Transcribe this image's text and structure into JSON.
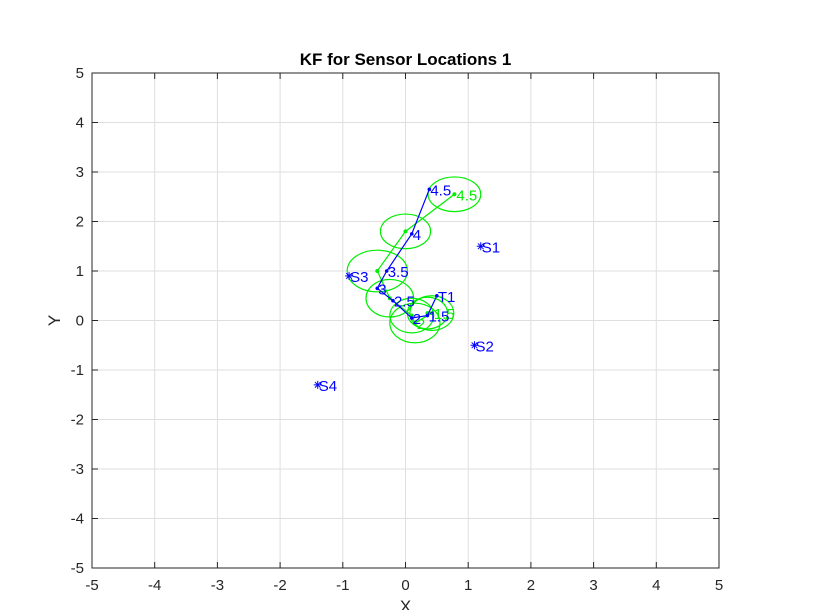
{
  "chart_data": {
    "type": "scatter",
    "title": "KF for Sensor Locations 1",
    "xlabel": "X",
    "ylabel": "Y",
    "xlim": [
      -5,
      5
    ],
    "ylim": [
      -5,
      5
    ],
    "xticks": [
      -5,
      -4,
      -3,
      -2,
      -1,
      0,
      1,
      2,
      3,
      4,
      5
    ],
    "yticks": [
      -5,
      -4,
      -3,
      -2,
      -1,
      0,
      1,
      2,
      3,
      4,
      5
    ],
    "grid": true,
    "colors": {
      "true_path": "#0000ff",
      "estimate": "#00ee00",
      "sensor": "#0000ff"
    },
    "sensors": [
      {
        "label": "S1",
        "x": 1.2,
        "y": 1.5
      },
      {
        "label": "S2",
        "x": 1.1,
        "y": -0.5
      },
      {
        "label": "S3",
        "x": -0.9,
        "y": 0.9
      },
      {
        "label": "S4",
        "x": -1.4,
        "y": -1.3
      }
    ],
    "true_path": [
      {
        "label": "T1",
        "x": 0.5,
        "y": 0.5
      },
      {
        "label": "1.5",
        "x": 0.35,
        "y": 0.1
      },
      {
        "label": "2",
        "x": 0.1,
        "y": 0.05
      },
      {
        "label": "2.5",
        "x": -0.2,
        "y": 0.4
      },
      {
        "label": "3",
        "x": -0.45,
        "y": 0.65
      },
      {
        "label": "3.5",
        "x": -0.3,
        "y": 1.0
      },
      {
        "label": "4",
        "x": 0.1,
        "y": 1.75
      },
      {
        "label": "4.5",
        "x": 0.38,
        "y": 2.65
      }
    ],
    "estimates": [
      {
        "label": "",
        "x": 0.35,
        "y": 0.15,
        "rx": 0.32,
        "ry": 0.32
      },
      {
        "label": "1.5",
        "x": 0.42,
        "y": 0.15,
        "rx": 0.35,
        "ry": 0.35
      },
      {
        "label": "2",
        "x": 0.15,
        "y": -0.05,
        "rx": 0.4,
        "ry": 0.4
      },
      {
        "label": "",
        "x": 0.1,
        "y": 0.1,
        "rx": 0.35,
        "ry": 0.35
      },
      {
        "label": "",
        "x": -0.25,
        "y": 0.45,
        "rx": 0.38,
        "ry": 0.38
      },
      {
        "label": "",
        "x": -0.45,
        "y": 1.0,
        "rx": 0.48,
        "ry": 0.42
      },
      {
        "label": "",
        "x": 0.0,
        "y": 1.8,
        "rx": 0.4,
        "ry": 0.35
      },
      {
        "label": "4.5",
        "x": 0.78,
        "y": 2.55,
        "rx": 0.42,
        "ry": 0.35
      }
    ]
  }
}
